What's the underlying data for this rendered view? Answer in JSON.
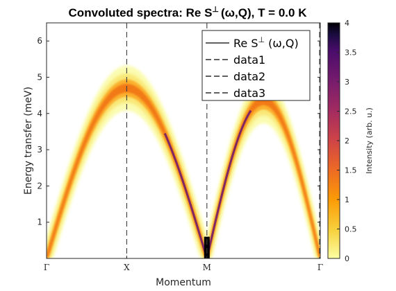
{
  "chart_data": {
    "type": "heatmap",
    "title": {
      "prefix": "Convoluted spectra: Re S",
      "sup": "⊥",
      "args": "(ω,Q), T =   0.0 K"
    },
    "xlabel": "Momentum",
    "ylabel": "Energy transfer (meV)",
    "x_ticks": [
      {
        "label": "Γ",
        "pos": 0
      },
      {
        "label": "X",
        "pos": 1
      },
      {
        "label": "M",
        "pos": 2
      },
      {
        "label": "Γ",
        "pos": 3.414
      }
    ],
    "xlim": [
      0,
      3.414
    ],
    "ylim": [
      0,
      6.5
    ],
    "y_ticks": [
      "1",
      "2",
      "3",
      "4",
      "5",
      "6"
    ],
    "y_tick_values": [
      1,
      2,
      3,
      4,
      5,
      6
    ],
    "colorbar": {
      "label": "Intensity (arb. u.)",
      "range": [
        0,
        4
      ],
      "ticks": [
        "0",
        "0.5",
        "1",
        "1.5",
        "2",
        "2.5",
        "3",
        "3.5",
        "4"
      ],
      "tick_values": [
        0,
        0.5,
        1,
        1.5,
        2,
        2.5,
        3,
        3.5,
        4
      ],
      "colormap": "inferno-reversed"
    },
    "branches": [
      {
        "from": 0,
        "to": 2,
        "peak_energy": 4.7,
        "peak_at": 1
      },
      {
        "from": 2,
        "to": 3.414,
        "peak_energy": 4.35,
        "peak_at": 2.707
      }
    ],
    "vertical_lines": [
      {
        "name": "data1",
        "x": 1
      },
      {
        "name": "data2",
        "x": 2
      },
      {
        "name": "data3",
        "x": 3.414
      }
    ],
    "legend": {
      "placement": "top-right",
      "entries": [
        {
          "name": "Re S⊥ (ω,Q)",
          "prefix": "Re S",
          "sup": "⊥",
          "suffix": " (ω,Q)",
          "style": "solid"
        },
        {
          "name": "data1",
          "style": "dashed"
        },
        {
          "name": "data2",
          "style": "dashed"
        },
        {
          "name": "data3",
          "style": "dashed"
        }
      ]
    },
    "grid": false
  }
}
